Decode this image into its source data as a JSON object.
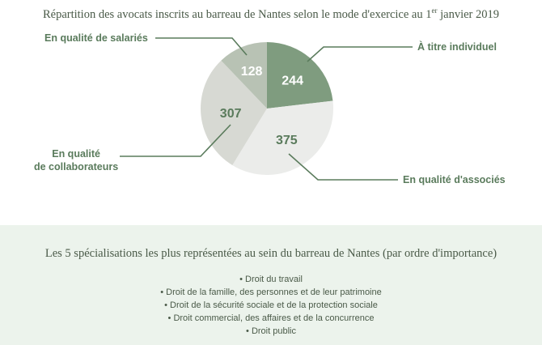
{
  "chart_data": {
    "type": "pie",
    "title_main": "Répartition des avocats inscrits au barreau de Nantes selon le mode d'exercice au 1",
    "title_sup": "er",
    "title_end": " janvier 2019",
    "slices": [
      {
        "label": "À titre individuel",
        "value": 244,
        "color": "#7f9c7f",
        "text_color": "#ffffff"
      },
      {
        "label": "En qualité d'associés",
        "value": 375,
        "color": "#ebecea",
        "text_color": "#5a7b5c"
      },
      {
        "label_lines": [
          "En qualité",
          "de collaborateurs"
        ],
        "value": 307,
        "color": "#d7d9d3",
        "text_color": "#5a7b5c"
      },
      {
        "label": "En qualité de salariés",
        "value": 128,
        "color": "#b8c2b4",
        "text_color": "#ffffff"
      }
    ]
  },
  "specialisations": {
    "title": "Les 5 spécialisations les plus représentées au sein du barreau de Nantes (par ordre d'importance)",
    "items": [
      "Droit du travail",
      "Droit de la famille, des personnes et de leur patrimoine",
      "Droit de la sécurité sociale et de la protection sociale",
      "Droit commercial, des affaires et de la concurrence",
      "Droit public"
    ]
  },
  "colors": {
    "accent": "#5a7b5c",
    "bottom_bg": "#ecf3ec"
  }
}
